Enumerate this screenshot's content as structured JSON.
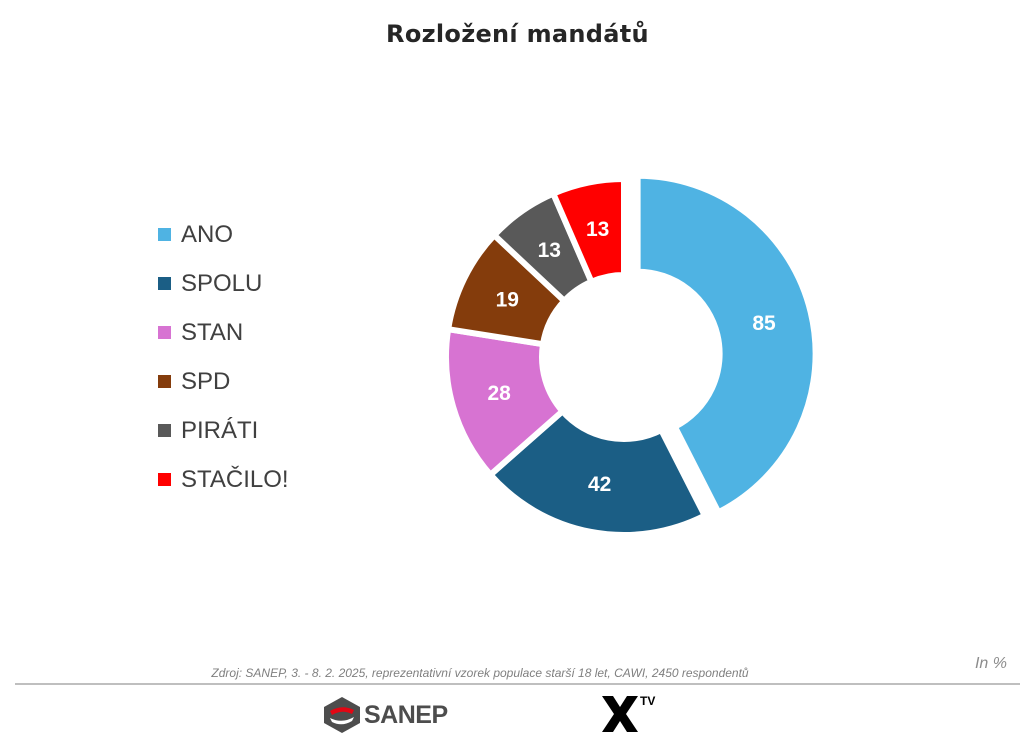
{
  "chart_data": {
    "type": "pie",
    "title": "Rozložení mandátů",
    "categories": [
      "ANO",
      "SPOLU",
      "STAN",
      "SPD",
      "PIRÁTI",
      "STAČILO!"
    ],
    "values": [
      85,
      42,
      28,
      19,
      13,
      13
    ],
    "colors": [
      "#4fb3e3",
      "#1b5e85",
      "#d773d2",
      "#843c0c",
      "#595959",
      "#ff0000"
    ],
    "legend_position": "left",
    "donut": true,
    "unit_note": "In %"
  },
  "source": "Zdroj: SANEP, 3. - 8. 2. 2025, reprezentativní vzorek populace starší 18 let, CAWI, 2450 respondentů",
  "logos": {
    "sanep": "SANEP",
    "xtv_sup": "TV"
  }
}
